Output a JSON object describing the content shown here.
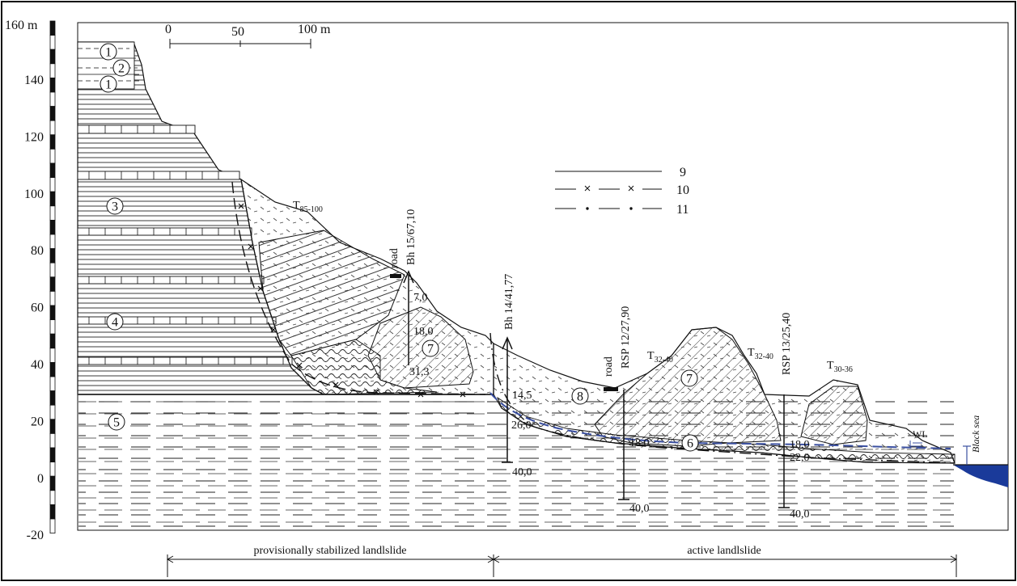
{
  "axis": {
    "unit_label": "160 m",
    "ticks": [
      "140",
      "120",
      "100",
      "80",
      "60",
      "40",
      "20",
      "0",
      "-20"
    ]
  },
  "scale_bar": {
    "labels": [
      "0",
      "50",
      "100 m"
    ]
  },
  "legend": [
    {
      "number": "9",
      "style": "solid"
    },
    {
      "number": "10",
      "style": "dash-cross"
    },
    {
      "number": "11",
      "style": "dash-dot"
    }
  ],
  "units": [
    "1",
    "2",
    "1",
    "3",
    "4",
    "5",
    "6",
    "7",
    "7",
    "8"
  ],
  "terraces": [
    {
      "base": "T",
      "sub": "85-100"
    },
    {
      "base": "T",
      "sub": "32-40"
    },
    {
      "base": "T",
      "sub": "32-40"
    },
    {
      "base": "T",
      "sub": "30-36"
    }
  ],
  "boreholes": [
    {
      "name": "Bh 15/67,10",
      "depths": [
        "7,0",
        "18,0",
        "31,3"
      ]
    },
    {
      "name": "Bh 14/41,77",
      "depths": [
        "14,5",
        "26,0",
        "40,0"
      ]
    },
    {
      "name": "RSP 12/27,90",
      "depths": [
        "18,0",
        "40,0"
      ]
    },
    {
      "name": "RSP 13/25,40",
      "depths": [
        "18,0",
        "22,0",
        "40,0"
      ]
    }
  ],
  "roads": [
    "road",
    "road"
  ],
  "water_level": "WL",
  "sea": "Black sea",
  "zones": [
    "provisionally stabilized landlslide",
    "active landlslide"
  ],
  "colors": {
    "water": "#1a3a9a",
    "blue_line": "#3a4fa0",
    "ink": "#111111"
  }
}
